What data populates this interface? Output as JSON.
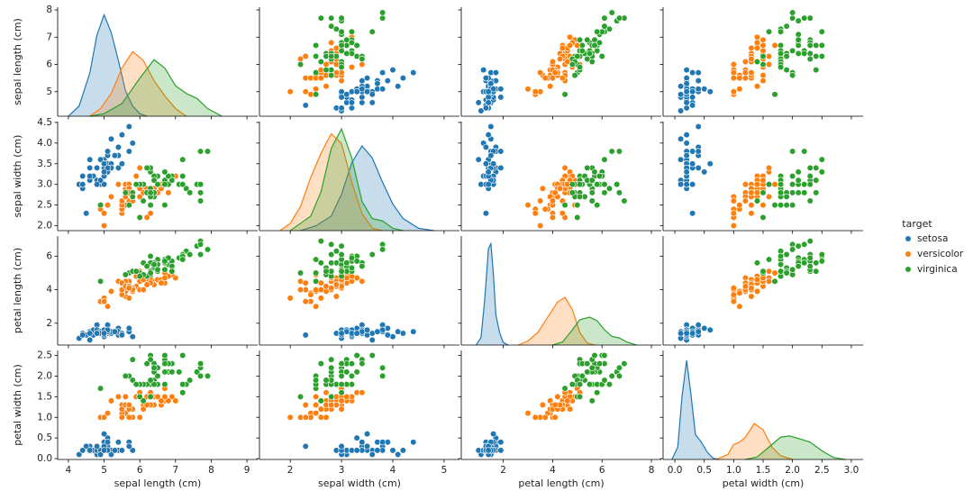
{
  "chart_data": {
    "type": "pairplot",
    "legend_title": "target",
    "variables": [
      {
        "label": "sepal length (cm)",
        "xlim": [
          3.7,
          9.3
        ],
        "xticks": [
          4,
          5,
          6,
          7,
          8,
          9
        ],
        "ylim": [
          4.1,
          8.1
        ],
        "yticks": [
          5,
          6,
          7,
          8
        ],
        "density_lim": [
          0,
          0.43
        ]
      },
      {
        "label": "sepal width (cm)",
        "xlim": [
          1.4,
          5.3
        ],
        "xticks": [
          2,
          3,
          4,
          5
        ],
        "ylim": [
          1.88,
          4.52
        ],
        "yticks": [
          {
            "value": 2,
            "label": "2.0"
          },
          2.5,
          {
            "value": 3,
            "label": "3.0"
          },
          3.5,
          {
            "value": 4,
            "label": "4.0"
          },
          4.5
        ],
        "density_lim": [
          0,
          0.45
        ]
      },
      {
        "label": "petal length (cm)",
        "xlim": [
          0.3,
          8.4
        ],
        "xticks": [
          2,
          4,
          6,
          8
        ],
        "ylim": [
          0.7,
          7.2
        ],
        "yticks": [
          2,
          4,
          6
        ],
        "density_lim": [
          0,
          2.15
        ]
      },
      {
        "label": "petal width (cm)",
        "xlim": [
          -0.2,
          3.2
        ],
        "xticks": [
          {
            "value": 0,
            "label": "0.0"
          },
          0.5,
          {
            "value": 1,
            "label": "1.0"
          },
          1.5,
          {
            "value": 2,
            "label": "2.0"
          },
          2.5,
          {
            "value": 3,
            "label": "3.0"
          }
        ],
        "ylim": [
          -0.02,
          2.62
        ],
        "yticks": [
          {
            "value": 0,
            "label": "0.0"
          },
          0.5,
          {
            "value": 1,
            "label": "1.0"
          },
          1.5,
          {
            "value": 2,
            "label": "2.0"
          },
          2.5
        ],
        "density_lim": [
          0,
          4.4
        ]
      }
    ],
    "series": [
      {
        "name": "setosa",
        "color": "#1f77b4",
        "values": [
          [
            5.1,
            4.9,
            4.7,
            4.6,
            5.0,
            5.4,
            4.6,
            5.0,
            4.4,
            4.9,
            5.4,
            4.8,
            4.8,
            4.3,
            5.8,
            5.7,
            5.4,
            5.1,
            5.7,
            5.1,
            5.4,
            5.1,
            4.6,
            5.1,
            4.8,
            5.0,
            5.0,
            5.2,
            5.2,
            4.7,
            4.8,
            5.4,
            5.2,
            5.5,
            4.9,
            5.0,
            5.5,
            4.9,
            4.4,
            5.1,
            5.0,
            4.5,
            4.4,
            5.0,
            5.1,
            4.8,
            5.1,
            4.6,
            5.3,
            5.0
          ],
          [
            3.5,
            3.0,
            3.2,
            3.1,
            3.6,
            3.9,
            3.4,
            3.4,
            2.9,
            3.1,
            3.7,
            3.4,
            3.0,
            3.0,
            4.0,
            4.4,
            3.9,
            3.5,
            3.8,
            3.8,
            3.4,
            3.7,
            3.6,
            3.3,
            3.4,
            3.0,
            3.4,
            3.5,
            3.4,
            3.2,
            3.1,
            3.4,
            4.1,
            4.2,
            3.1,
            3.2,
            3.5,
            3.6,
            3.0,
            3.4,
            3.5,
            2.3,
            3.2,
            3.5,
            3.8,
            3.0,
            3.8,
            3.2,
            3.7,
            3.3
          ],
          [
            1.4,
            1.4,
            1.3,
            1.5,
            1.4,
            1.7,
            1.4,
            1.5,
            1.4,
            1.5,
            1.5,
            1.6,
            1.4,
            1.1,
            1.2,
            1.5,
            1.3,
            1.4,
            1.7,
            1.5,
            1.7,
            1.5,
            1.0,
            1.7,
            1.9,
            1.6,
            1.6,
            1.5,
            1.4,
            1.6,
            1.6,
            1.5,
            1.5,
            1.4,
            1.5,
            1.2,
            1.3,
            1.4,
            1.3,
            1.5,
            1.3,
            1.3,
            1.3,
            1.6,
            1.9,
            1.4,
            1.6,
            1.4,
            1.5,
            1.4
          ],
          [
            0.2,
            0.2,
            0.2,
            0.2,
            0.2,
            0.4,
            0.3,
            0.2,
            0.2,
            0.1,
            0.2,
            0.2,
            0.1,
            0.1,
            0.2,
            0.4,
            0.4,
            0.3,
            0.3,
            0.3,
            0.2,
            0.4,
            0.2,
            0.5,
            0.2,
            0.2,
            0.4,
            0.2,
            0.2,
            0.2,
            0.2,
            0.4,
            0.1,
            0.2,
            0.2,
            0.2,
            0.2,
            0.1,
            0.2,
            0.2,
            0.3,
            0.3,
            0.2,
            0.6,
            0.4,
            0.3,
            0.2,
            0.2,
            0.2,
            0.2
          ]
        ],
        "kde": [
          {
            "x": [
              4.0,
              4.3,
              4.6,
              4.8,
              5.0,
              5.2,
              5.4,
              5.6,
              5.8,
              6.0,
              6.2
            ],
            "values": [
              0,
              0.04,
              0.17,
              0.32,
              0.4,
              0.33,
              0.22,
              0.1,
              0.04,
              0.01,
              0
            ]
          },
          {
            "x": [
              2.2,
              2.5,
              2.8,
              3.0,
              3.2,
              3.4,
              3.6,
              3.8,
              4.0,
              4.2,
              4.5,
              4.8
            ],
            "values": [
              0,
              0.02,
              0.06,
              0.15,
              0.28,
              0.35,
              0.3,
              0.2,
              0.11,
              0.05,
              0.01,
              0
            ]
          },
          {
            "x": [
              0.9,
              1.1,
              1.25,
              1.4,
              1.5,
              1.6,
              1.7,
              1.85,
              2.0,
              2.2
            ],
            "values": [
              0,
              0.15,
              0.9,
              1.9,
              2.0,
              1.4,
              0.6,
              0.25,
              0.05,
              0
            ]
          },
          {
            "x": [
              -0.05,
              0.05,
              0.12,
              0.2,
              0.27,
              0.35,
              0.45,
              0.55,
              0.65,
              0.75
            ],
            "values": [
              0,
              0.5,
              2.5,
              4.0,
              2.7,
              1.0,
              0.7,
              0.3,
              0.05,
              0
            ]
          }
        ]
      },
      {
        "name": "versicolor",
        "color": "#ff7f0e",
        "values": [
          [
            7.0,
            6.4,
            6.9,
            5.5,
            6.5,
            5.7,
            6.3,
            4.9,
            6.6,
            5.2,
            5.0,
            5.9,
            6.0,
            6.1,
            5.6,
            6.7,
            5.6,
            5.8,
            6.2,
            5.6,
            5.9,
            6.1,
            6.3,
            6.1,
            6.4,
            6.6,
            6.8,
            6.7,
            6.0,
            5.7,
            5.5,
            5.5,
            5.8,
            6.0,
            5.4,
            6.0,
            6.7,
            6.3,
            5.6,
            5.5,
            5.5,
            6.1,
            5.8,
            5.0,
            5.6,
            5.7,
            5.7,
            6.2,
            5.1,
            5.7
          ],
          [
            3.2,
            3.2,
            3.1,
            2.3,
            2.8,
            2.8,
            3.3,
            2.4,
            2.9,
            2.7,
            2.0,
            3.0,
            2.2,
            2.9,
            2.9,
            3.1,
            3.0,
            2.7,
            2.2,
            2.5,
            3.2,
            2.8,
            2.5,
            2.8,
            2.9,
            3.0,
            2.8,
            3.0,
            2.9,
            2.6,
            2.4,
            2.4,
            2.7,
            2.7,
            3.0,
            3.4,
            3.1,
            2.3,
            3.0,
            2.5,
            2.6,
            3.0,
            2.6,
            2.3,
            2.7,
            3.0,
            2.9,
            2.9,
            2.5,
            2.8
          ],
          [
            4.7,
            4.5,
            4.9,
            4.0,
            4.6,
            4.5,
            4.7,
            3.3,
            4.6,
            3.9,
            3.5,
            4.2,
            4.0,
            4.7,
            3.6,
            4.4,
            4.5,
            4.1,
            4.5,
            3.9,
            4.8,
            4.0,
            4.9,
            4.7,
            4.3,
            4.4,
            4.8,
            5.0,
            4.5,
            3.5,
            3.8,
            3.7,
            3.9,
            5.1,
            4.5,
            4.5,
            4.7,
            4.4,
            4.1,
            4.0,
            4.4,
            4.6,
            4.0,
            3.3,
            4.2,
            4.2,
            4.2,
            4.3,
            3.0,
            4.1
          ],
          [
            1.4,
            1.5,
            1.5,
            1.3,
            1.5,
            1.3,
            1.6,
            1.0,
            1.3,
            1.4,
            1.0,
            1.5,
            1.0,
            1.4,
            1.3,
            1.4,
            1.5,
            1.0,
            1.5,
            1.1,
            1.8,
            1.3,
            1.5,
            1.2,
            1.3,
            1.4,
            1.4,
            1.7,
            1.5,
            1.0,
            1.1,
            1.0,
            1.2,
            1.6,
            1.5,
            1.6,
            1.5,
            1.3,
            1.3,
            1.3,
            1.2,
            1.4,
            1.2,
            1.0,
            1.3,
            1.2,
            1.3,
            1.3,
            1.1,
            1.3
          ]
        ],
        "kde": [
          {
            "x": [
              4.6,
              4.9,
              5.2,
              5.5,
              5.8,
              6.1,
              6.4,
              6.7,
              7.0,
              7.3
            ],
            "values": [
              0,
              0.03,
              0.09,
              0.19,
              0.255,
              0.22,
              0.14,
              0.08,
              0.03,
              0
            ]
          },
          {
            "x": [
              1.8,
              2.0,
              2.2,
              2.4,
              2.6,
              2.8,
              3.0,
              3.2,
              3.4,
              3.6,
              3.8
            ],
            "values": [
              0,
              0.03,
              0.1,
              0.22,
              0.32,
              0.4,
              0.36,
              0.2,
              0.07,
              0.01,
              0
            ]
          },
          {
            "x": [
              2.6,
              3.0,
              3.4,
              3.8,
              4.2,
              4.5,
              4.8,
              5.1,
              5.4,
              5.7
            ],
            "values": [
              0,
              0.08,
              0.25,
              0.55,
              0.85,
              0.94,
              0.7,
              0.25,
              0.04,
              0
            ]
          },
          {
            "x": [
              0.7,
              0.9,
              1.0,
              1.1,
              1.2,
              1.35,
              1.5,
              1.65,
              1.8,
              2.0
            ],
            "values": [
              0,
              0.2,
              0.6,
              0.7,
              0.9,
              1.45,
              1.2,
              0.5,
              0.15,
              0
            ]
          }
        ]
      },
      {
        "name": "virginica",
        "color": "#2ca02c",
        "values": [
          [
            6.3,
            5.8,
            7.1,
            6.3,
            6.5,
            7.6,
            4.9,
            7.3,
            6.7,
            7.2,
            6.5,
            6.4,
            6.8,
            5.7,
            5.8,
            6.4,
            6.5,
            7.7,
            7.7,
            6.0,
            6.9,
            5.6,
            7.7,
            6.3,
            6.7,
            7.2,
            6.2,
            6.1,
            6.4,
            7.2,
            7.4,
            7.9,
            6.4,
            6.3,
            6.1,
            7.7,
            6.3,
            6.4,
            6.0,
            6.9,
            6.7,
            6.9,
            5.8,
            6.8,
            6.7,
            6.7,
            6.3,
            6.5,
            6.2,
            5.9
          ],
          [
            3.3,
            2.7,
            3.0,
            2.9,
            3.0,
            3.0,
            2.5,
            2.9,
            2.5,
            3.6,
            3.2,
            2.7,
            3.0,
            2.5,
            2.8,
            3.2,
            3.0,
            3.8,
            2.6,
            2.2,
            3.2,
            2.8,
            2.8,
            2.7,
            3.3,
            3.2,
            2.8,
            3.0,
            2.8,
            3.0,
            2.8,
            3.8,
            2.8,
            2.8,
            2.6,
            3.0,
            3.4,
            3.1,
            3.0,
            3.1,
            3.1,
            3.1,
            2.7,
            3.2,
            3.3,
            3.0,
            2.5,
            3.0,
            3.4,
            3.0
          ],
          [
            6.0,
            5.1,
            5.9,
            5.6,
            5.8,
            6.6,
            4.5,
            6.3,
            5.8,
            6.1,
            5.1,
            5.3,
            5.5,
            5.0,
            5.1,
            5.3,
            5.5,
            6.7,
            6.9,
            5.0,
            5.7,
            4.9,
            6.7,
            4.9,
            5.7,
            6.0,
            4.8,
            4.9,
            5.6,
            5.8,
            6.1,
            6.4,
            5.6,
            5.1,
            5.6,
            6.1,
            5.6,
            5.5,
            4.8,
            5.4,
            5.6,
            5.1,
            5.1,
            5.9,
            5.7,
            5.2,
            5.0,
            5.2,
            5.4,
            5.1
          ],
          [
            2.5,
            1.9,
            2.1,
            1.8,
            2.2,
            2.1,
            1.7,
            1.8,
            1.8,
            2.5,
            2.0,
            1.9,
            2.1,
            2.0,
            2.4,
            2.3,
            1.8,
            2.2,
            2.3,
            1.5,
            2.3,
            2.0,
            2.0,
            1.8,
            2.1,
            1.8,
            1.8,
            1.8,
            2.1,
            1.6,
            1.9,
            2.0,
            2.2,
            1.5,
            1.4,
            2.3,
            2.4,
            1.8,
            1.8,
            2.1,
            2.4,
            2.3,
            1.9,
            2.3,
            2.5,
            2.3,
            1.9,
            2.0,
            2.3,
            1.8
          ]
        ],
        "kde": [
          {
            "x": [
              4.6,
              5.0,
              5.5,
              6.0,
              6.4,
              6.7,
              7.0,
              7.3,
              7.6,
              7.9,
              8.3
            ],
            "values": [
              0,
              0.01,
              0.05,
              0.15,
              0.223,
              0.19,
              0.12,
              0.09,
              0.07,
              0.03,
              0
            ]
          },
          {
            "x": [
              2.0,
              2.2,
              2.4,
              2.6,
              2.8,
              3.0,
              3.2,
              3.4,
              3.6,
              3.8,
              4.0,
              4.2
            ],
            "values": [
              0,
              0.03,
              0.06,
              0.16,
              0.34,
              0.42,
              0.3,
              0.12,
              0.05,
              0.04,
              0.01,
              0
            ]
          },
          {
            "x": [
              4.0,
              4.4,
              4.8,
              5.1,
              5.5,
              5.8,
              6.1,
              6.4,
              6.7,
              7.0,
              7.4
            ],
            "values": [
              0,
              0.06,
              0.3,
              0.5,
              0.55,
              0.48,
              0.3,
              0.17,
              0.14,
              0.06,
              0
            ]
          },
          {
            "x": [
              1.2,
              1.4,
              1.6,
              1.8,
              1.95,
              2.1,
              2.3,
              2.5,
              2.7,
              2.9
            ],
            "values": [
              0,
              0.1,
              0.5,
              0.9,
              0.95,
              0.85,
              0.7,
              0.35,
              0.08,
              0
            ]
          }
        ]
      }
    ]
  }
}
